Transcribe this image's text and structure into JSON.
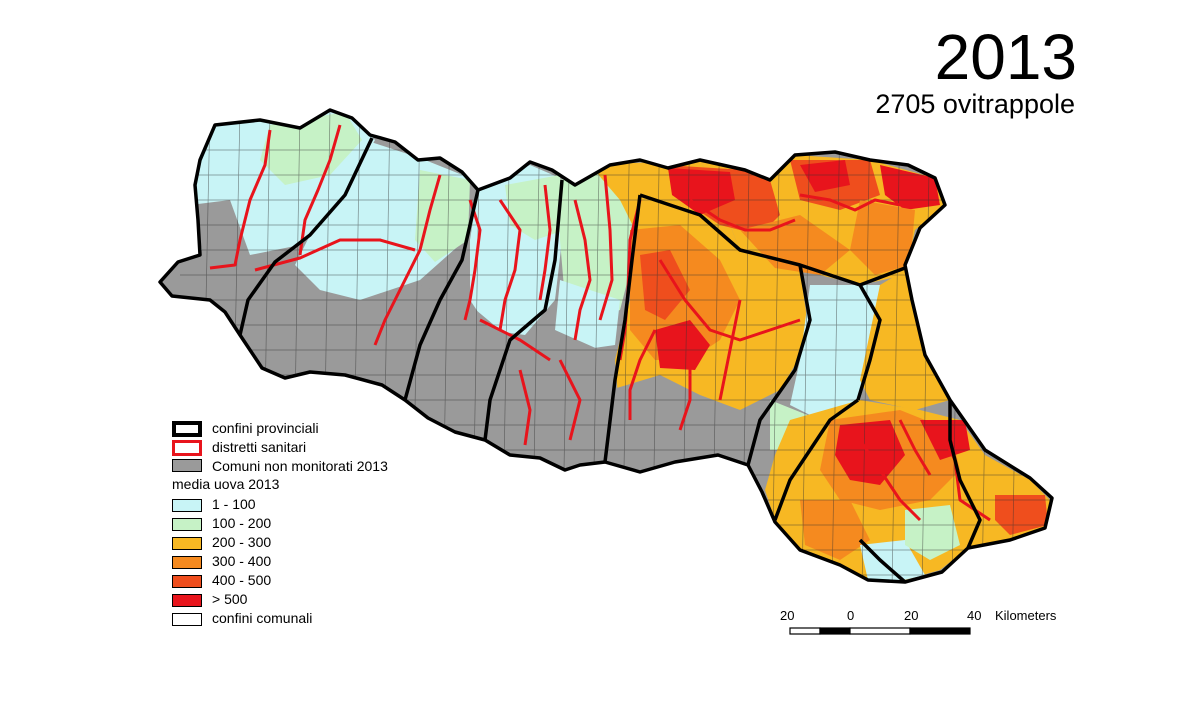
{
  "title": {
    "year": "2013",
    "subtitle": "2705 ovitrappole"
  },
  "legend": {
    "rows": [
      {
        "label": "confini provinciali",
        "style": "thick-black",
        "color": "#ffffff"
      },
      {
        "label": "distretti sanitari",
        "style": "thick-red",
        "color": "#ffffff"
      },
      {
        "label": "Comuni non monitorati 2013",
        "style": "fill",
        "color": "#9a9a9a"
      }
    ],
    "heading": "media uova 2013",
    "classes": [
      {
        "label": "1 - 100",
        "color": "#c8f4f6"
      },
      {
        "label": "100 - 200",
        "color": "#c6f2c6"
      },
      {
        "label": "200 - 300",
        "color": "#f7b823"
      },
      {
        "label": "300 - 400",
        "color": "#f58a1f"
      },
      {
        "label": "400 - 500",
        "color": "#ef4e1d"
      },
      {
        "label": "> 500",
        "color": "#e8141c"
      },
      {
        "label": "confini comunali",
        "color": "#ffffff"
      }
    ]
  },
  "scale": {
    "labels": [
      "20",
      "0",
      "20",
      "40"
    ],
    "unit": "Kilometers"
  }
}
